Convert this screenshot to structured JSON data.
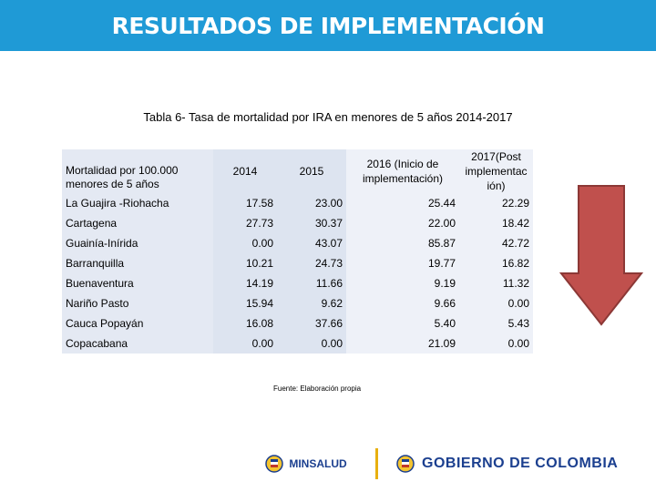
{
  "title": "RESULTADOS DE IMPLEMENTACIÓN",
  "caption": "Tabla 6- Tasa de mortalidad por IRA en menores de 5 años 2014-2017",
  "table": {
    "header_label_line1": "Mortalidad   por   100.000",
    "header_label_line2": "menores de 5 años",
    "col_2014": "2014",
    "col_2015": "2015",
    "col_2016": "2016 (Inicio de implementación)",
    "col_2017": "2017(Post implementac ión)",
    "rows": [
      {
        "label": "La Guajira -Riohacha",
        "v2014": "17.58",
        "v2015": "23.00",
        "v2016": "25.44",
        "v2017": "22.29"
      },
      {
        "label": "Cartagena",
        "v2014": "27.73",
        "v2015": "30.37",
        "v2016": "22.00",
        "v2017": "18.42"
      },
      {
        "label": "Guainía-Inírida",
        "v2014": "0.00",
        "v2015": "43.07",
        "v2016": "85.87",
        "v2017": "42.72"
      },
      {
        "label": "Barranquilla",
        "v2014": "10.21",
        "v2015": "24.73",
        "v2016": "19.77",
        "v2017": "16.82"
      },
      {
        "label": "Buenaventura",
        "v2014": "14.19",
        "v2015": "11.66",
        "v2016": "9.19",
        "v2017": "11.32"
      },
      {
        "label": "Nariño Pasto",
        "v2014": "15.94",
        "v2015": "9.62",
        "v2016": "9.66",
        "v2017": "0.00"
      },
      {
        "label": "Cauca Popayán",
        "v2014": "16.08",
        "v2015": "37.66",
        "v2016": "5.40",
        "v2017": "5.43"
      },
      {
        "label": "Copacabana",
        "v2014": "0.00",
        "v2015": "0.00",
        "v2016": "21.09",
        "v2017": "0.00"
      }
    ]
  },
  "source": "Fuente: Elaboración propia",
  "footer": {
    "minsalud": "MINSALUD",
    "gobierno": "GOBIERNO DE COLOMBIA"
  },
  "colors": {
    "title_bar": "#1f9ad6",
    "arrow_fill": "#c0504d",
    "arrow_stroke": "#8c3836",
    "footer_text": "#1b3f8f"
  },
  "icons": {
    "arrow": "down-arrow-icon",
    "seal": "colombia-seal-icon"
  }
}
